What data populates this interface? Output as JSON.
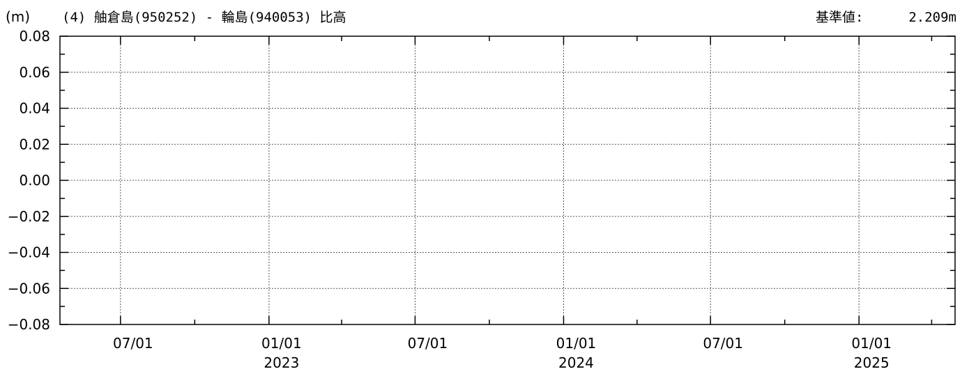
{
  "header": {
    "unit_label": "(m)",
    "title": "(4) 舳倉島(950252) - 輪島(940053) 比高",
    "reference_label": "基準値:",
    "reference_value": "2.209m"
  },
  "chart_data": {
    "type": "line",
    "title": "(4) 舳倉島(950252) - 輪島(940053) 比高",
    "ylabel": "(m)",
    "xlabel": "",
    "ylim": [
      -0.08,
      0.08
    ],
    "xlim": [
      "2022-04-17",
      "2025-04-30"
    ],
    "yticks": [
      0.08,
      0.06,
      0.04,
      0.02,
      0.0,
      -0.02,
      -0.04,
      -0.06,
      -0.08
    ],
    "ytick_labels": [
      "0.08",
      "0.06",
      "0.04",
      "0.02",
      "0.00",
      "−0.02",
      "−0.04",
      "−0.06",
      "−0.08"
    ],
    "y_minor_step": 0.01,
    "xticks": [
      {
        "date": "2022-07-01",
        "label": "07/01",
        "year": ""
      },
      {
        "date": "2023-01-01",
        "label": "01/01",
        "year": "2023"
      },
      {
        "date": "2023-07-01",
        "label": "07/01",
        "year": ""
      },
      {
        "date": "2024-01-01",
        "label": "01/01",
        "year": "2024"
      },
      {
        "date": "2024-07-01",
        "label": "07/01",
        "year": ""
      },
      {
        "date": "2025-01-01",
        "label": "01/01",
        "year": "2025"
      }
    ],
    "x_minor_ticks": [
      "2022-10-01",
      "2023-04-01",
      "2023-10-01",
      "2024-04-01",
      "2024-10-01",
      "2025-04-01"
    ],
    "grid": true,
    "series": []
  }
}
